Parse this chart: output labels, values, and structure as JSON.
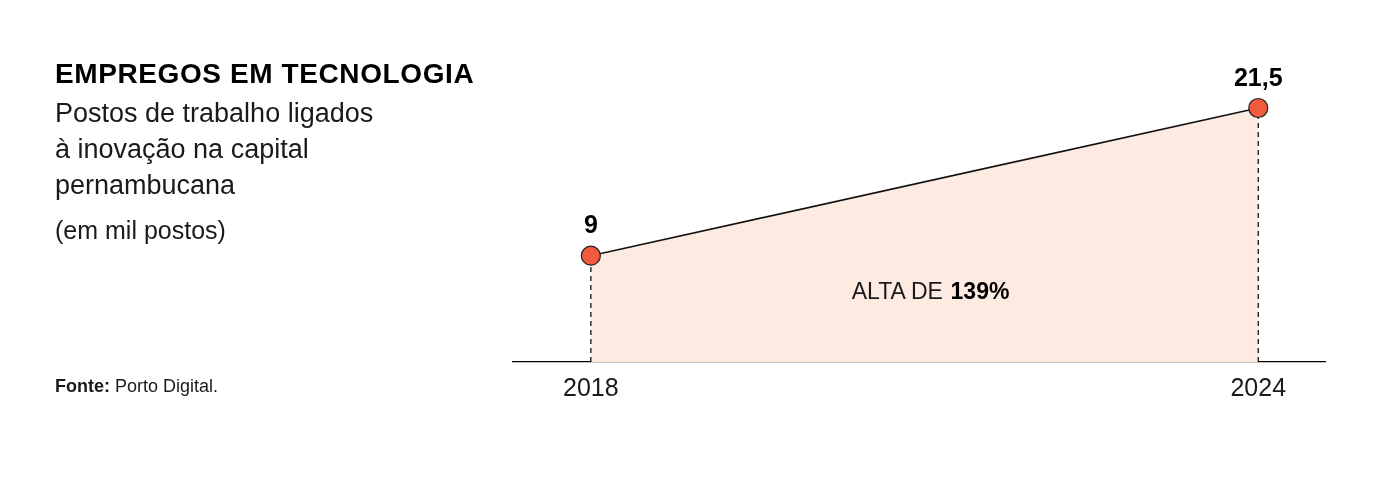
{
  "chart_data": {
    "type": "area",
    "title": "EMPREGOS EM TECNOLOGIA",
    "subtitle": "Postos de trabalho ligados à inovação na capital pernambucana",
    "annotations": [
      "(em mil postos)",
      "ALTA DE 139%",
      "Fonte: Porto Digital."
    ],
    "x": [
      2018,
      2024
    ],
    "xlim": [
      2017.3,
      2024.6
    ],
    "xticks": [
      2018,
      2024
    ],
    "values": [
      9,
      21.5
    ],
    "value_labels": [
      "9",
      "21,5"
    ],
    "color": "#fdebe1",
    "colors": [
      "#f15a3c",
      "#f15a3c"
    ],
    "marker": "circle",
    "grid": false,
    "legend": false,
    "tick_labels": "x",
    "ref_lines": [
      {
        "axis": "x",
        "value": 2018,
        "color": "#000000",
        "line_style": "dashed"
      },
      {
        "axis": "x",
        "value": 2024,
        "color": "#000000",
        "line_style": "dashed"
      }
    ]
  }
}
